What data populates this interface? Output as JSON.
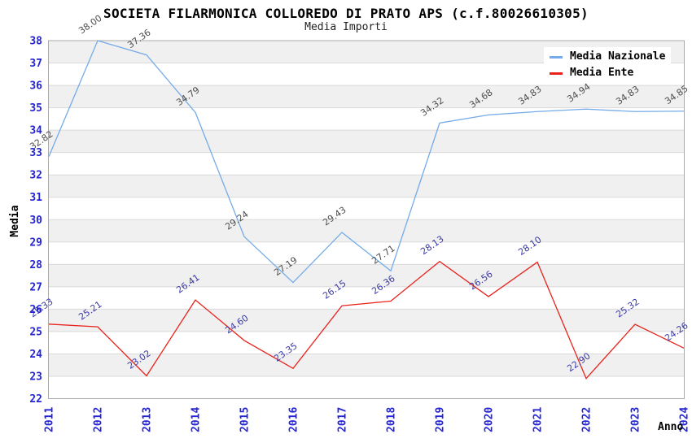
{
  "chart_data": {
    "type": "line",
    "title": "SOCIETA FILARMONICA COLLOREDO DI PRATO APS (c.f.80026610305)",
    "subtitle": "Media Importi",
    "xlabel": "Anno",
    "ylabel": "Media",
    "ylim": [
      22,
      38
    ],
    "ytick_step": 1,
    "grid": true,
    "legend_position": "top-right",
    "categories": [
      "2011",
      "2012",
      "2013",
      "2014",
      "2015",
      "2016",
      "2017",
      "2018",
      "2019",
      "2020",
      "2021",
      "2022",
      "2023",
      "2024"
    ],
    "series": [
      {
        "name": "Media Nazionale",
        "color": "#74abe8",
        "label_color": "#4d4d4d",
        "values": [
          32.82,
          38.0,
          37.36,
          34.79,
          29.24,
          27.19,
          29.43,
          27.71,
          34.32,
          34.68,
          34.83,
          34.94,
          34.83,
          34.85
        ]
      },
      {
        "name": "Media Ente",
        "color": "#e8231c",
        "label_color": "#3939a8",
        "values": [
          25.33,
          25.21,
          23.02,
          26.41,
          24.6,
          23.35,
          26.15,
          26.36,
          28.13,
          26.56,
          28.1,
          22.9,
          25.32,
          24.26
        ]
      }
    ],
    "style": {
      "band_color": "#f0f0f0",
      "grid_color": "#dadada",
      "border_color": "#aaaaaa",
      "tick_label_color": "#2424d6",
      "axis_title_color": "#000000"
    }
  }
}
